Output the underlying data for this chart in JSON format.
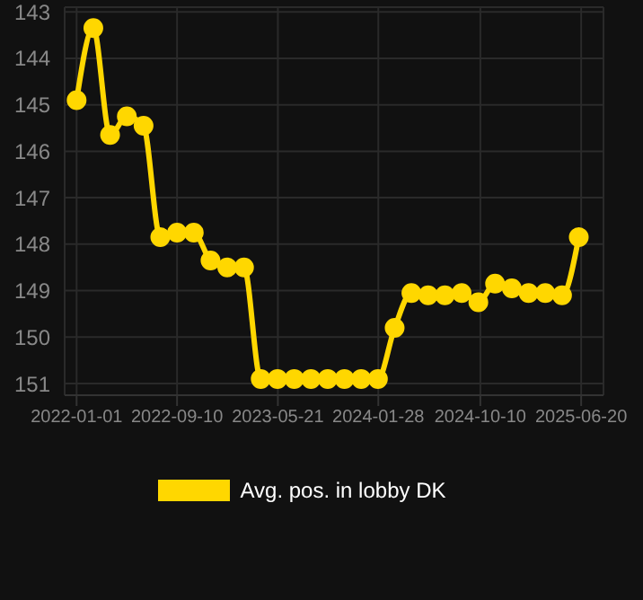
{
  "chart_data": {
    "type": "line",
    "x": [
      "2022-01-01",
      "2022-02-12",
      "2022-03-26",
      "2022-05-07",
      "2022-06-18",
      "2022-07-30",
      "2022-09-10",
      "2022-10-22",
      "2022-12-03",
      "2023-01-14",
      "2023-02-25",
      "2023-04-08",
      "2023-05-20",
      "2023-07-01",
      "2023-08-12",
      "2023-09-23",
      "2023-11-04",
      "2023-12-16",
      "2024-01-27",
      "2024-03-09",
      "2024-04-20",
      "2024-06-01",
      "2024-07-13",
      "2024-08-24",
      "2024-10-05",
      "2024-11-16",
      "2024-12-28",
      "2025-02-08",
      "2025-03-22",
      "2025-05-03",
      "2025-06-14"
    ],
    "series": [
      {
        "name": "Avg. pos. in lobby DK",
        "color": "#ffd700",
        "values": [
          144.9,
          143.35,
          145.65,
          145.25,
          145.45,
          147.85,
          147.75,
          147.75,
          148.35,
          148.5,
          148.5,
          150.9,
          150.9,
          150.9,
          150.9,
          150.9,
          150.9,
          150.9,
          150.9,
          149.8,
          149.05,
          149.1,
          149.1,
          149.05,
          149.25,
          148.85,
          148.95,
          149.05,
          149.05,
          149.1,
          147.85
        ]
      }
    ],
    "xlim": [
      "2021-12-02",
      "2025-08-15"
    ],
    "xticks": [
      "2022-01-01",
      "2022-09-10",
      "2023-05-21",
      "2024-01-28",
      "2024-10-10",
      "2025-06-20"
    ],
    "ylim": [
      151.25,
      142.9
    ],
    "yticks": [
      143,
      144,
      145,
      146,
      147,
      148,
      149,
      150,
      151
    ],
    "grid": true,
    "legend": "bottom",
    "marker": "circle",
    "line_style": "solid"
  }
}
